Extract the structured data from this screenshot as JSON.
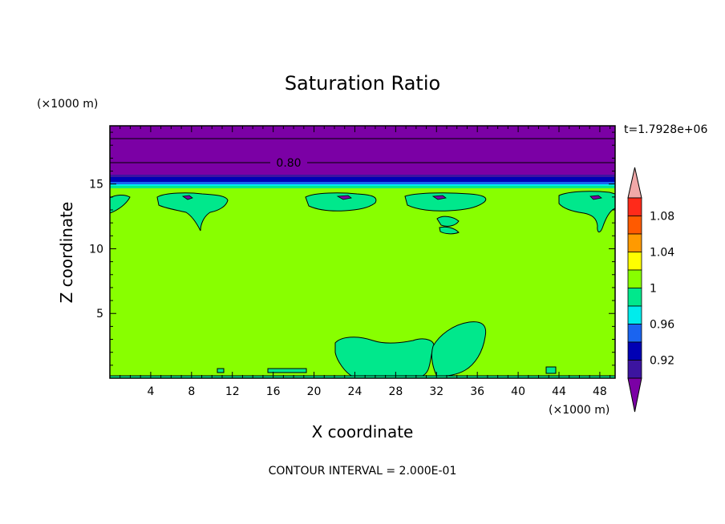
{
  "chart_data": {
    "type": "contour",
    "title": "Saturation Ratio",
    "xlabel": "X coordinate",
    "ylabel": "Z coordinate",
    "x_unit": "(×1000 m)",
    "z_unit": "(×1000 m)",
    "time_label": "t=1.7928e+06",
    "footer": "CONTOUR INTERVAL = 2.000E-01",
    "xlim": [
      0,
      49.5
    ],
    "ylim": [
      0,
      19.5
    ],
    "x_ticks": [
      4,
      8,
      12,
      16,
      20,
      24,
      28,
      32,
      36,
      40,
      44,
      48
    ],
    "y_ticks": [
      5,
      10,
      15
    ],
    "contour_lines": [
      {
        "z": 18.8
      },
      {
        "z": 16.9,
        "label": "0.80"
      }
    ],
    "contour_label": "0.80",
    "colorbar": {
      "labels": [
        "1.08",
        "1.04",
        "1",
        "0.96",
        "0.92"
      ],
      "levels": [
        {
          "min": 1.1,
          "color": "#f0a8a8"
        },
        {
          "min": 1.08,
          "max": 1.1,
          "color": "#ff2a1a"
        },
        {
          "min": 1.06,
          "max": 1.08,
          "color": "#ff5a00"
        },
        {
          "min": 1.04,
          "max": 1.06,
          "color": "#ff9a00"
        },
        {
          "min": 1.02,
          "max": 1.04,
          "color": "#ffff00"
        },
        {
          "min": 1.0,
          "max": 1.02,
          "color": "#88ff00"
        },
        {
          "min": 0.98,
          "max": 1.0,
          "color": "#00e88c"
        },
        {
          "min": 0.96,
          "max": 0.98,
          "color": "#00ecec"
        },
        {
          "min": 0.94,
          "max": 0.96,
          "color": "#1a64f0"
        },
        {
          "min": 0.92,
          "max": 0.94,
          "color": "#0000b4"
        },
        {
          "min": 0.9,
          "max": 0.92,
          "color": "#3c14a0"
        },
        {
          "max": 0.9,
          "color": "#7b00a5"
        }
      ]
    },
    "regions": {
      "background": {
        "value_range": [
          1.0,
          1.02
        ],
        "color": "#88ff00"
      },
      "upper_layer": {
        "z_range": [
          15.9,
          19.5
        ],
        "value": "below 0.90",
        "color": "#7b00a5"
      },
      "transition_band": {
        "z_range": [
          15.2,
          15.9
        ],
        "value_range": [
          0.9,
          0.98
        ]
      },
      "near_saturation_patches": {
        "value_range": [
          0.98,
          1.0
        ],
        "color": "#00e88c"
      }
    }
  }
}
